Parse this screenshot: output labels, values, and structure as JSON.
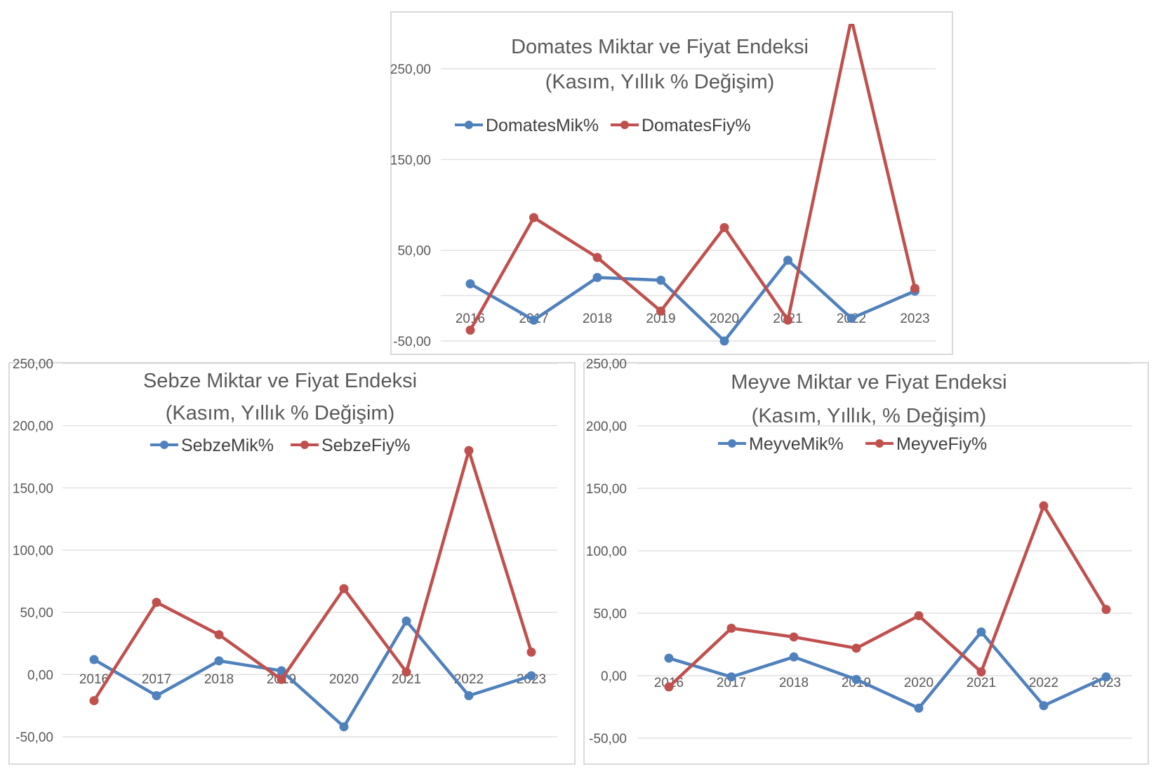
{
  "colors": {
    "blue": "#4f81bd",
    "red": "#c0504d"
  },
  "chart_data": [
    {
      "type": "line",
      "title": [
        "Domates Miktar ve Fiyat Endeksi",
        "(Kasım, Yıllık % Değişim)"
      ],
      "categories": [
        "2016",
        "2017",
        "2018",
        "2019",
        "2020",
        "2021",
        "2022",
        "2023"
      ],
      "yticks": [
        "250,00",
        "150,00",
        "50,00",
        "-50,00"
      ],
      "ylim": [
        -50,
        305
      ],
      "grid": true,
      "legend_position": "top",
      "series": [
        {
          "name": "DomatesMik%",
          "color": "#4f81bd",
          "values": [
            13,
            -27,
            20,
            17,
            -50,
            39,
            -25,
            5
          ]
        },
        {
          "name": "DomatesFiy%",
          "color": "#c0504d",
          "values": [
            -38,
            86,
            42,
            -17,
            75,
            -27,
            305,
            8
          ]
        }
      ]
    },
    {
      "type": "line",
      "title": [
        "Sebze  Miktar ve Fiyat Endeksi",
        "(Kasım,  Yıllık % Değişim)"
      ],
      "categories": [
        "2016",
        "2017",
        "2018",
        "2019",
        "2020",
        "2021",
        "2022",
        "2023"
      ],
      "yticks": [
        "250,00",
        "200,00",
        "150,00",
        "100,00",
        "50,00",
        "0,00",
        "-50,00"
      ],
      "ylim": [
        -50,
        250
      ],
      "grid": true,
      "legend_position": "top",
      "series": [
        {
          "name": "SebzeMik%",
          "color": "#4f81bd",
          "values": [
            12,
            -17,
            11,
            3,
            -42,
            43,
            -17,
            -1
          ]
        },
        {
          "name": "SebzeFiy%",
          "color": "#c0504d",
          "values": [
            -21,
            58,
            32,
            -4,
            69,
            2,
            180,
            18
          ]
        }
      ]
    },
    {
      "type": "line",
      "title": [
        "Meyve Miktar ve Fiyat Endeksi",
        "(Kasım, Yıllık, % Değişim)"
      ],
      "categories": [
        "2016",
        "2017",
        "2018",
        "2019",
        "2020",
        "2021",
        "2022",
        "2023"
      ],
      "yticks": [
        "250,00",
        "200,00",
        "150,00",
        "100,00",
        "50,00",
        "0,00",
        "-50,00"
      ],
      "ylim": [
        -50,
        250
      ],
      "grid": true,
      "legend_position": "top",
      "series": [
        {
          "name": "MeyveMik%",
          "color": "#4f81bd",
          "values": [
            14,
            -1,
            15,
            -3,
            -26,
            35,
            -24,
            -1
          ]
        },
        {
          "name": "MeyveFiy%",
          "color": "#c0504d",
          "values": [
            -9,
            38,
            31,
            22,
            48,
            3,
            136,
            53
          ]
        }
      ]
    }
  ]
}
